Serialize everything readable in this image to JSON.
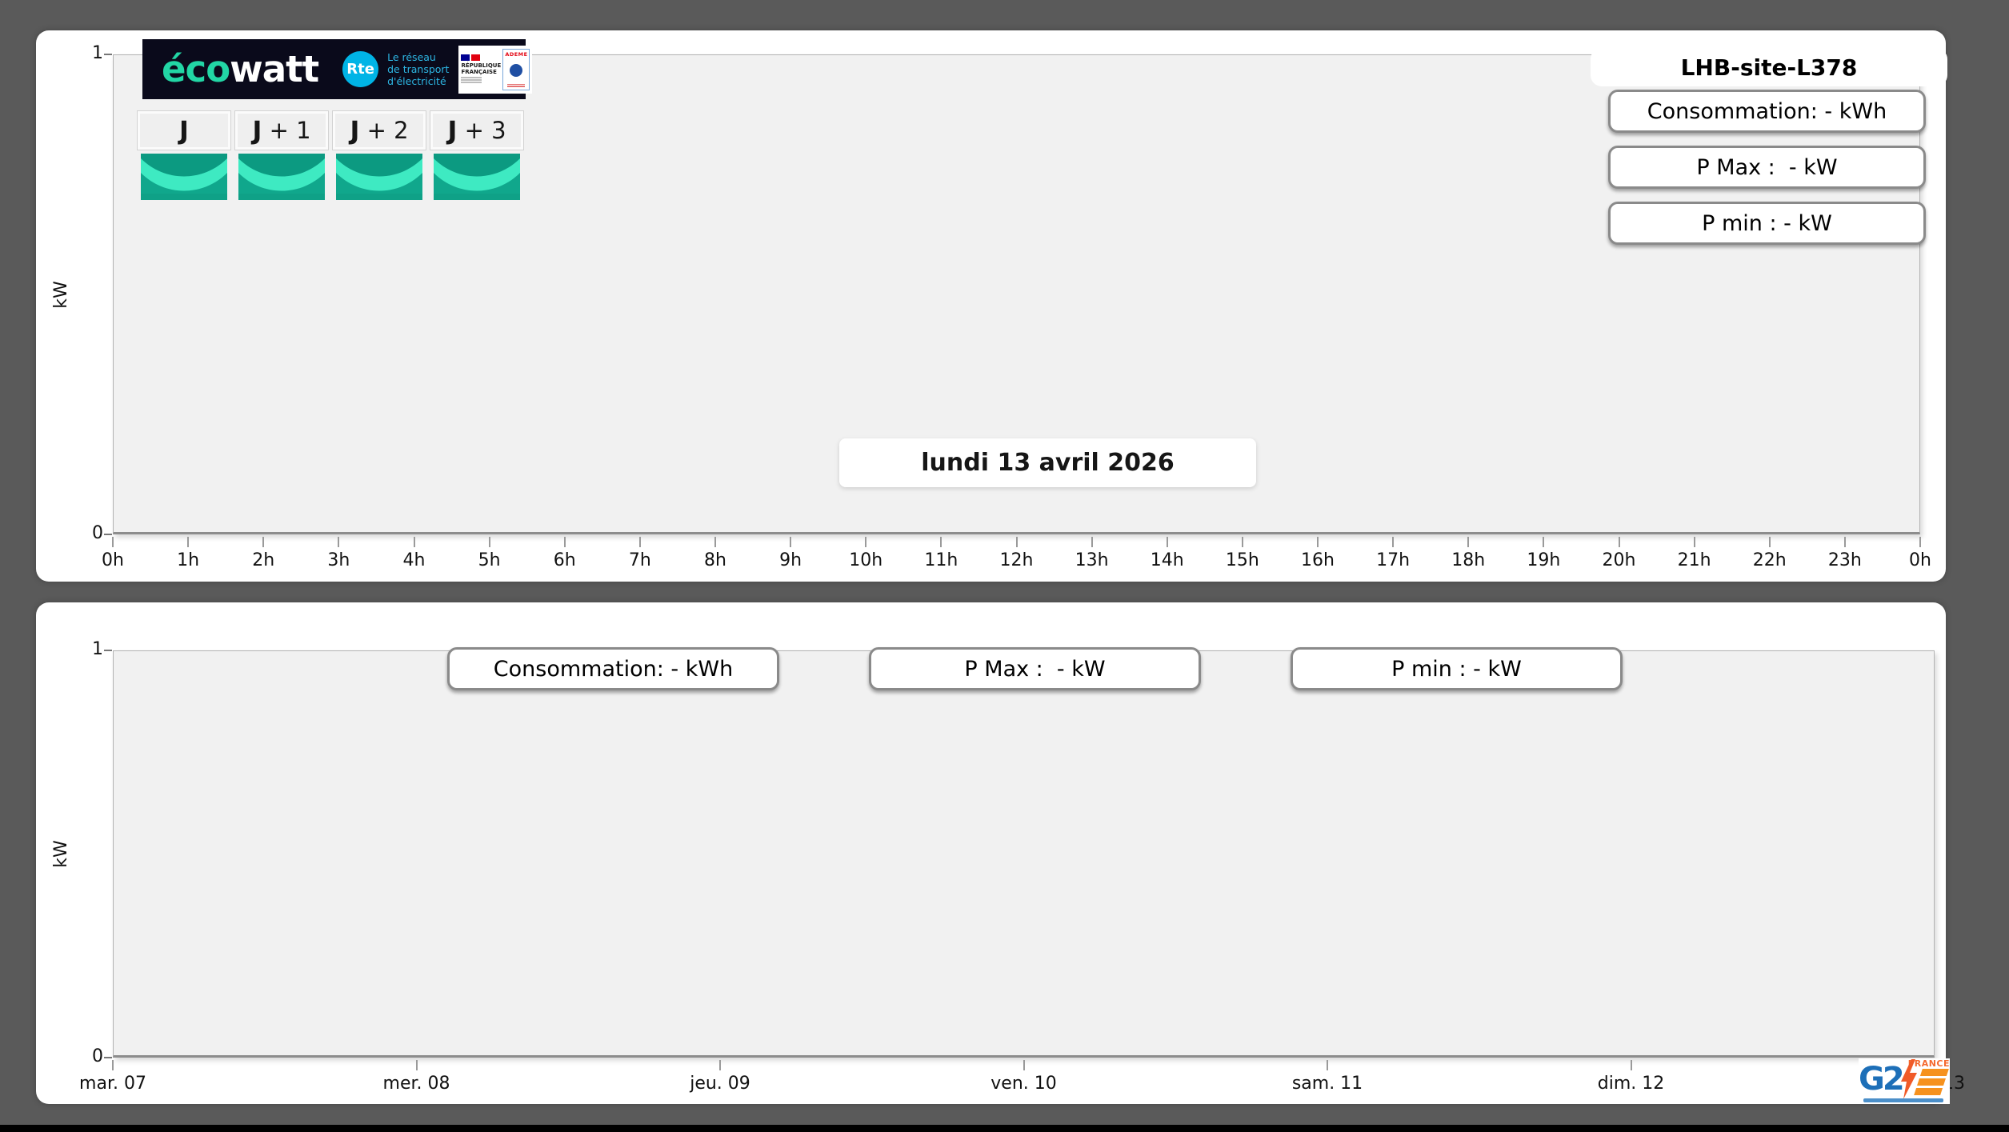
{
  "ecowatt": {
    "brand_eco": "éco",
    "brand_watt": "watt",
    "rte_badge": "Rte",
    "rte_tagline": [
      "Le réseau",
      "de transport",
      "d'électricité"
    ],
    "republique": [
      "RÉPUBLIQUE",
      "FRANÇAISE"
    ],
    "ademe": "ADEME"
  },
  "day_tabs": [
    {
      "prefix": "J",
      "suffix": ""
    },
    {
      "prefix": "J",
      "suffix": " + 1"
    },
    {
      "prefix": "J",
      "suffix": " + 2"
    },
    {
      "prefix": "J",
      "suffix": " + 3"
    }
  ],
  "daily_chart": {
    "site_title": "LHB-site-L378",
    "stats": [
      "Consommation: - kWh",
      "P Max :  - kW",
      "P min : - kW"
    ],
    "date_label": "lundi 13 avril 2026",
    "ylabel": "kW",
    "y_ticks": [
      "1",
      "0"
    ],
    "ylim": [
      0,
      1
    ],
    "x_ticks": [
      "0h",
      "1h",
      "2h",
      "3h",
      "4h",
      "5h",
      "6h",
      "7h",
      "8h",
      "9h",
      "10h",
      "11h",
      "12h",
      "13h",
      "14h",
      "15h",
      "16h",
      "17h",
      "18h",
      "19h",
      "20h",
      "21h",
      "22h",
      "23h",
      "0h"
    ],
    "series": []
  },
  "weekly_chart": {
    "stats": [
      "Consommation: - kWh",
      "P Max :  - kW",
      "P min : - kW"
    ],
    "ylabel": "kW",
    "y_ticks": [
      "1",
      "0"
    ],
    "ylim": [
      0,
      1
    ],
    "x_ticks": [
      "mar. 07",
      "mer. 08",
      "jeu. 09",
      "ven. 10",
      "sam. 11",
      "dim. 12",
      "lun. 13"
    ],
    "series": []
  },
  "g2e": {
    "g2": "G2",
    "france": "FRANCE"
  },
  "colors": {
    "background": "#5a5a5a",
    "plot_bg": "#f1f1f1",
    "ecowatt_teal": "#22d6a5",
    "ecowatt_navy": "#0a0a1b",
    "rte_cyan": "#00b4e6",
    "icon_teal": "#10a78c",
    "icon_mint": "#3eeac2",
    "g2e_blue": "#1d6fb8",
    "g2e_orange": "#f6921e"
  }
}
